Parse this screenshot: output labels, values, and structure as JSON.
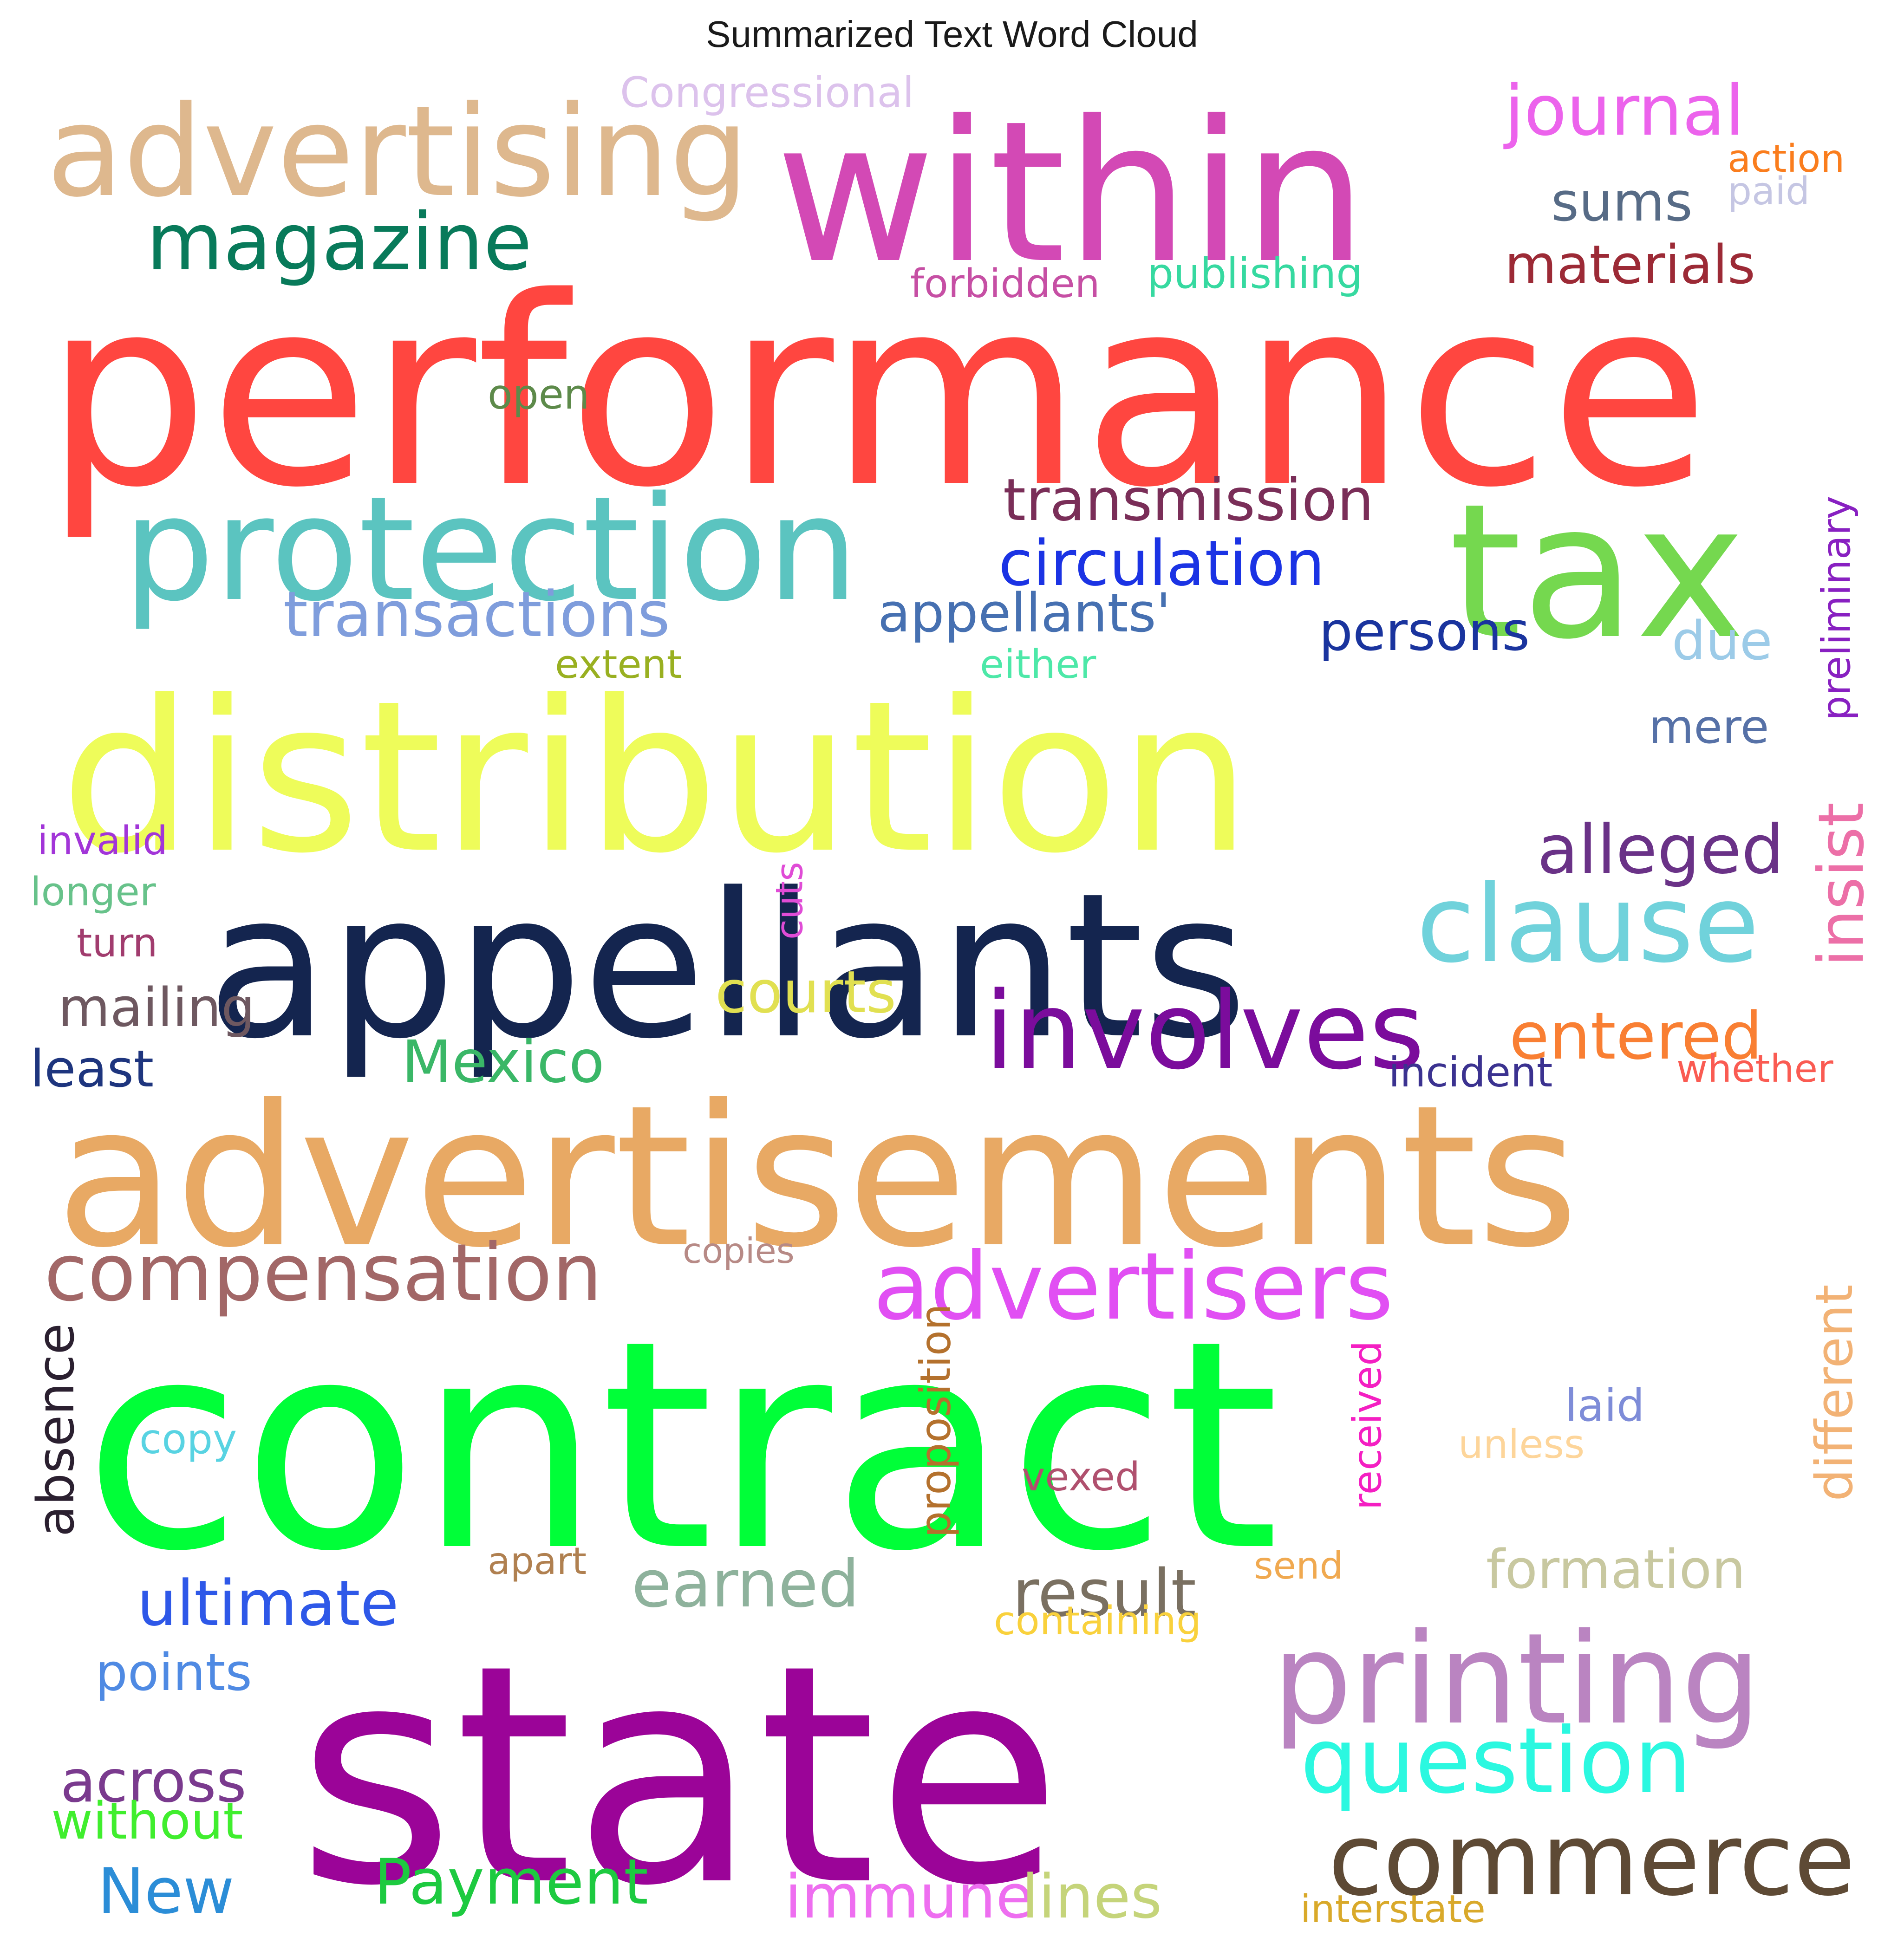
{
  "chart_data": {
    "type": "wordcloud",
    "title": "Summarized Text Word Cloud",
    "words": [
      {
        "text": "performance",
        "color": "#ff4640",
        "orientation": "horizontal"
      },
      {
        "text": "contract",
        "color": "#00ff38",
        "orientation": "horizontal"
      },
      {
        "text": "state",
        "color": "#9b0498",
        "orientation": "horizontal"
      },
      {
        "text": "advertisements",
        "color": "#e8a964",
        "orientation": "horizontal"
      },
      {
        "text": "distribution",
        "color": "#eefc5a",
        "orientation": "horizontal"
      },
      {
        "text": "appellants",
        "color": "#14254f",
        "orientation": "horizontal"
      },
      {
        "text": "within",
        "color": "#d349b5",
        "orientation": "horizontal"
      },
      {
        "text": "tax",
        "color": "#75d84f",
        "orientation": "horizontal"
      },
      {
        "text": "protection",
        "color": "#5bc4c0",
        "orientation": "horizontal"
      },
      {
        "text": "advertising",
        "color": "#deb88e",
        "orientation": "horizontal"
      },
      {
        "text": "printing",
        "color": "#ba84c1",
        "orientation": "horizontal"
      },
      {
        "text": "involves",
        "color": "#7b0c9c",
        "orientation": "horizontal"
      },
      {
        "text": "clause",
        "color": "#70d2db",
        "orientation": "horizontal"
      },
      {
        "text": "commerce",
        "color": "#5e4a35",
        "orientation": "horizontal"
      },
      {
        "text": "advertisers",
        "color": "#e14ff3",
        "orientation": "horizontal"
      },
      {
        "text": "compensation",
        "color": "#a26767",
        "orientation": "horizontal"
      },
      {
        "text": "question",
        "color": "#2bf8e0",
        "orientation": "horizontal"
      },
      {
        "text": "magazine",
        "color": "#087a5a",
        "orientation": "horizontal"
      },
      {
        "text": "journal",
        "color": "#ec63ec",
        "orientation": "horizontal"
      },
      {
        "text": "transmission",
        "color": "#7a2e58",
        "orientation": "horizontal"
      },
      {
        "text": "circulation",
        "color": "#1b33e4",
        "orientation": "horizontal"
      },
      {
        "text": "transactions",
        "color": "#7f9ddc",
        "orientation": "horizontal"
      },
      {
        "text": "alleged",
        "color": "#6a3287",
        "orientation": "horizontal"
      },
      {
        "text": "entered",
        "color": "#f97f33",
        "orientation": "horizontal"
      },
      {
        "text": "result",
        "color": "#7a7061",
        "orientation": "horizontal"
      },
      {
        "text": "earned",
        "color": "#8eb29c",
        "orientation": "horizontal"
      },
      {
        "text": "ultimate",
        "color": "#2e58e8",
        "orientation": "horizontal"
      },
      {
        "text": "Payment",
        "color": "#1dca40",
        "orientation": "horizontal"
      },
      {
        "text": "materials",
        "color": "#9c2a36",
        "orientation": "horizontal"
      },
      {
        "text": "appellants'",
        "color": "#4670b1",
        "orientation": "horizontal"
      },
      {
        "text": "persons",
        "color": "#1a349e",
        "orientation": "horizontal"
      },
      {
        "text": "Mexico",
        "color": "#3ab767",
        "orientation": "horizontal"
      },
      {
        "text": "mailing",
        "color": "#6e5860",
        "orientation": "horizontal"
      },
      {
        "text": "courts",
        "color": "#e1e051",
        "orientation": "horizontal"
      },
      {
        "text": "across",
        "color": "#7a3a8e",
        "orientation": "horizontal"
      },
      {
        "text": "formation",
        "color": "#c8c8a0",
        "orientation": "horizontal"
      },
      {
        "text": "immune",
        "color": "#ee6ef0",
        "orientation": "horizontal"
      },
      {
        "text": "lines",
        "color": "#c5d47a",
        "orientation": "horizontal"
      },
      {
        "text": "points",
        "color": "#4f8ae3",
        "orientation": "horizontal"
      },
      {
        "text": "without",
        "color": "#40ee2e",
        "orientation": "horizontal"
      },
      {
        "text": "New",
        "color": "#2b8dd7",
        "orientation": "horizontal"
      },
      {
        "text": "least",
        "color": "#1e357e",
        "orientation": "horizontal"
      },
      {
        "text": "sums",
        "color": "#576b86",
        "orientation": "horizontal"
      },
      {
        "text": "due",
        "color": "#9ccbe8",
        "orientation": "horizontal"
      },
      {
        "text": "mere",
        "color": "#5671a7",
        "orientation": "horizontal"
      },
      {
        "text": "insist",
        "color": "#ec6fa7",
        "orientation": "vertical"
      },
      {
        "text": "different",
        "color": "#f2b275",
        "orientation": "vertical"
      },
      {
        "text": "absence",
        "color": "#2b2030",
        "orientation": "vertical"
      },
      {
        "text": "Congressional",
        "color": "#dcc2ec",
        "orientation": "horizontal"
      },
      {
        "text": "action",
        "color": "#fa7d1d",
        "orientation": "horizontal"
      },
      {
        "text": "paid",
        "color": "#c5c6e3",
        "orientation": "horizontal"
      },
      {
        "text": "forbidden",
        "color": "#c64fa4",
        "orientation": "horizontal"
      },
      {
        "text": "publishing",
        "color": "#36d9a0",
        "orientation": "horizontal"
      },
      {
        "text": "open",
        "color": "#5d8a4a",
        "orientation": "horizontal"
      },
      {
        "text": "preliminary",
        "color": "#8820c1",
        "orientation": "vertical"
      },
      {
        "text": "extent",
        "color": "#99b021",
        "orientation": "horizontal"
      },
      {
        "text": "either",
        "color": "#4de8a8",
        "orientation": "horizontal"
      },
      {
        "text": "invalid",
        "color": "#a235d8",
        "orientation": "horizontal"
      },
      {
        "text": "longer",
        "color": "#67c28a",
        "orientation": "horizontal"
      },
      {
        "text": "turn",
        "color": "#a13c6e",
        "orientation": "horizontal"
      },
      {
        "text": "cuts",
        "color": "#e04cd6",
        "orientation": "vertical"
      },
      {
        "text": "incident",
        "color": "#3b3290",
        "orientation": "horizontal"
      },
      {
        "text": "whether",
        "color": "#fa5b52",
        "orientation": "horizontal"
      },
      {
        "text": "copies",
        "color": "#b78a86",
        "orientation": "horizontal"
      },
      {
        "text": "proposition",
        "color": "#b4712d",
        "orientation": "vertical"
      },
      {
        "text": "received",
        "color": "#f41fc2",
        "orientation": "vertical"
      },
      {
        "text": "laid",
        "color": "#7e8cd8",
        "orientation": "horizontal"
      },
      {
        "text": "copy",
        "color": "#58d3e2",
        "orientation": "horizontal"
      },
      {
        "text": "unless",
        "color": "#fdd59a",
        "orientation": "horizontal"
      },
      {
        "text": "vexed",
        "color": "#b0506e",
        "orientation": "horizontal"
      },
      {
        "text": "apart",
        "color": "#b08050",
        "orientation": "horizontal"
      },
      {
        "text": "send",
        "color": "#f0a950",
        "orientation": "horizontal"
      },
      {
        "text": "containing",
        "color": "#f9d13c",
        "orientation": "horizontal"
      },
      {
        "text": "interstate",
        "color": "#d9a92a",
        "orientation": "horizontal"
      }
    ]
  }
}
